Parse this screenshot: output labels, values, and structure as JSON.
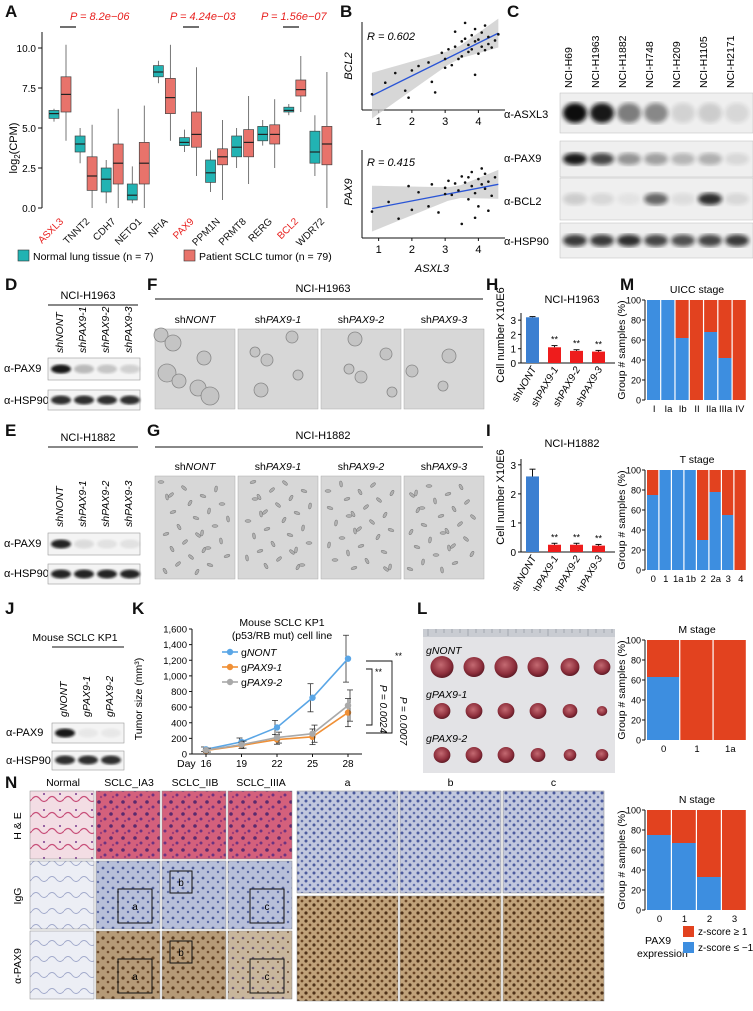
{
  "panels": {
    "A": {
      "label": "A",
      "ylabel": "log",
      "ylabel_sub": "2",
      "ylabel_rest": "(CPM)",
      "yticks": [
        "0.0",
        "2.5",
        "5.0",
        "7.5",
        "10.0"
      ],
      "pvalues": [
        "P = 8.2e−06",
        "P = 4.24e−03",
        "P = 1.56e−07"
      ],
      "genes": [
        "ASXL3",
        "TNNT2",
        "CDH7",
        "NETO1",
        "NFIA",
        "PAX9",
        "PPM1N",
        "PRMT8",
        "RERG",
        "BCL2",
        "WDR72"
      ],
      "highlight": [
        "ASXL3",
        "PAX9",
        "BCL2"
      ],
      "legend": {
        "normal": "Normal lung tissue (n = 7)",
        "tumor": "Patient SCLC tumor (n = 79)"
      },
      "colors": {
        "normal": "#22b3b3",
        "tumor": "#e8736b",
        "highlight": "#e8211f"
      }
    },
    "B": {
      "label": "B",
      "top": {
        "r": "R = 0.602",
        "ylabel": "BCL2"
      },
      "bottom": {
        "r": "R = 0.415",
        "ylabel": "PAX9",
        "xlabel": "ASXL3"
      },
      "xticks": [
        "1",
        "2",
        "3",
        "4"
      ]
    },
    "C": {
      "label": "C",
      "lanes": [
        "NCI-H69",
        "NCI-H1963",
        "NCI-H1882",
        "NCI-H748",
        "NCI-H209",
        "NCI-H1105",
        "NCI-H2171"
      ],
      "rows": [
        "α-ASXL3",
        "α-PAX9",
        "α-BCL2",
        "α-HSP90"
      ]
    },
    "D": {
      "label": "D",
      "cell": "NCI-H1963",
      "lanes": [
        "shNONT",
        "shPAX9-1",
        "shPAX9-2",
        "shPAX9-3"
      ],
      "rows": [
        "α-PAX9",
        "α-HSP90"
      ]
    },
    "E": {
      "label": "E",
      "cell": "NCI-H1882",
      "lanes": [
        "shNONT",
        "shPAX9-1",
        "shPAX9-2",
        "shPAX9-3"
      ],
      "rows": [
        "α-PAX9",
        "α-HSP90"
      ]
    },
    "F": {
      "label": "F",
      "cell": "NCI-H1963",
      "images": [
        "shNONT",
        "shPAX9-1",
        "shPAX9-2",
        "shPAX9-3"
      ]
    },
    "G": {
      "label": "G",
      "cell": "NCI-H1882",
      "images": [
        "shNONT",
        "shPAX9-1",
        "shPAX9-2",
        "shPAX9-3"
      ]
    },
    "H": {
      "label": "H",
      "title": "NCI-H1963",
      "ylabel": "Cell number X10E6",
      "yticks": [
        "0",
        "1",
        "2",
        "3"
      ],
      "categories": [
        "shNONT",
        "shPAX9-1",
        "shPAX9-2",
        "shPAX9-3"
      ],
      "sig": "**"
    },
    "I": {
      "label": "I",
      "title": "NCI-H1882",
      "ylabel": "Cell number X10E6",
      "yticks": [
        "0",
        "1",
        "2",
        "3"
      ],
      "categories": [
        "shNONT",
        "shPAX9-1",
        "shPAX9-2",
        "shPAX9-3"
      ],
      "sig": "**"
    },
    "J": {
      "label": "J",
      "title": "Mouse SCLC KP1",
      "lanes": [
        "gNONT",
        "gPAX9-1",
        "gPAX9-2"
      ],
      "rows": [
        "α-PAX9",
        "α-HSP90"
      ]
    },
    "K": {
      "label": "K",
      "title1": "Mouse SCLC KP1",
      "title2": "(p53/RB mut) cell line",
      "ylabel": "Tumor size (mm³)",
      "xlabel_prefix": "Day",
      "p1": "P = 0.0024",
      "p2": "P = 0.0007",
      "sig": "**"
    },
    "L": {
      "label": "L",
      "rows": [
        "gNONT",
        "gPAX9-1",
        "gPAX9-2"
      ]
    },
    "M": {
      "label": "M",
      "ylabel": "Group # samples (%)",
      "yticks": [
        "0",
        "20",
        "40",
        "60",
        "80",
        "100"
      ],
      "legend": {
        "title1": "PAX9",
        "title2": "expression",
        "high": "z-score ≥ 1",
        "low": "z-score ≤ −1"
      },
      "colors": {
        "high": "#e2421f",
        "low": "#3d8ee0"
      }
    },
    "N": {
      "label": "N",
      "cols_left": [
        "Normal",
        "SCLC_IA3",
        "SCLC_IIB",
        "SCLC_IIIA"
      ],
      "cols_right": [
        "a",
        "b",
        "c"
      ],
      "rows": [
        "H & E",
        "IgG",
        "α-PAX9"
      ],
      "boxes": [
        "a",
        "b",
        "c"
      ]
    }
  },
  "chart_data": [
    {
      "panel": "A",
      "type": "box",
      "categories": [
        "ASXL3",
        "TNNT2",
        "CDH7",
        "NETO1",
        "NFIA",
        "PAX9",
        "PPM1N",
        "PRMT8",
        "RERG",
        "BCL2",
        "WDR72"
      ],
      "ylim": [
        0,
        11
      ],
      "series": [
        {
          "name": "Normal lung tissue (n = 7)",
          "box": [
            [
              5.4,
              5.6,
              5.9,
              6.1,
              6.2
            ],
            [
              2.8,
              3.5,
              4.0,
              4.5,
              5.0
            ],
            [
              0.3,
              1.0,
              1.8,
              2.5,
              3.0
            ],
            [
              0.3,
              0.5,
              0.8,
              1.5,
              2.6
            ],
            [
              7.8,
              8.2,
              8.5,
              8.9,
              9.2
            ],
            [
              3.5,
              3.9,
              4.1,
              4.4,
              4.9
            ],
            [
              1.0,
              1.6,
              2.2,
              3.0,
              3.6
            ],
            [
              2.5,
              3.2,
              3.8,
              4.5,
              5.0
            ],
            [
              3.9,
              4.2,
              4.6,
              5.1,
              5.5
            ],
            [
              5.8,
              6.0,
              6.1,
              6.3,
              6.5
            ],
            [
              2.0,
              2.8,
              3.5,
              4.8,
              5.8
            ]
          ]
        },
        {
          "name": "Patient SCLC tumor (n = 79)",
          "box": [
            [
              4.2,
              6.0,
              7.1,
              8.2,
              10.2
            ],
            [
              0.0,
              1.1,
              2.0,
              3.2,
              5.2
            ],
            [
              0.0,
              1.5,
              2.8,
              4.0,
              6.2
            ],
            [
              0.0,
              1.5,
              2.8,
              4.1,
              6.4
            ],
            [
              4.2,
              5.9,
              6.9,
              8.1,
              10.2
            ],
            [
              2.0,
              3.8,
              4.6,
              6.0,
              8.8
            ],
            [
              0.5,
              2.7,
              3.2,
              3.7,
              5.5
            ],
            [
              1.5,
              3.2,
              4.1,
              4.9,
              7.0
            ],
            [
              2.5,
              4.0,
              4.6,
              5.2,
              6.8
            ],
            [
              6.0,
              7.0,
              7.4,
              8.0,
              9.5
            ],
            [
              0.0,
              2.7,
              4.0,
              5.1,
              8.5
            ]
          ]
        }
      ]
    },
    {
      "panel": "B-top",
      "type": "scatter",
      "r": 0.602,
      "xlim": [
        0.5,
        4.8
      ],
      "ylim": [
        0,
        10
      ],
      "x": [
        0.8,
        1.2,
        1.5,
        1.8,
        2.0,
        2.2,
        2.5,
        2.7,
        2.9,
        3.0,
        3.1,
        3.2,
        3.3,
        3.4,
        3.5,
        3.5,
        3.6,
        3.7,
        3.7,
        3.8,
        3.8,
        3.9,
        3.9,
        4.0,
        4.0,
        4.1,
        4.1,
        4.2,
        4.2,
        4.3,
        4.3,
        4.4,
        4.5,
        2.6,
        1.9,
        3.0,
        3.3,
        4.6,
        3.6,
        3.9
      ],
      "y": [
        1.8,
        3.1,
        4.2,
        2.2,
        4.5,
        5.0,
        5.4,
        2.0,
        6.5,
        5.8,
        6.9,
        5.1,
        7.2,
        5.8,
        7.8,
        6.1,
        8.1,
        6.6,
        7.4,
        8.5,
        6.9,
        7.8,
        9.2,
        6.4,
        8.0,
        7.2,
        8.8,
        6.8,
        9.6,
        7.5,
        8.3,
        7.1,
        7.9,
        3.2,
        1.4,
        4.8,
        8.9,
        8.6,
        9.9,
        4.0
      ]
    },
    {
      "panel": "B-bottom",
      "type": "scatter",
      "r": 0.415,
      "xlim": [
        0.5,
        4.8
      ],
      "ylim": [
        0,
        10
      ],
      "x": [
        0.8,
        1.3,
        1.6,
        2.0,
        2.2,
        2.5,
        2.8,
        3.0,
        3.1,
        3.2,
        3.3,
        3.4,
        3.5,
        3.6,
        3.7,
        3.7,
        3.8,
        3.8,
        3.9,
        4.0,
        4.0,
        4.1,
        4.1,
        4.2,
        4.2,
        4.3,
        4.4,
        4.5,
        2.6,
        3.5,
        3.9,
        4.3,
        1.9,
        3.0
      ],
      "y": [
        3.0,
        4.1,
        2.2,
        3.2,
        5.2,
        3.6,
        2.9,
        5.7,
        6.5,
        4.9,
        6.2,
        5.4,
        7.0,
        6.3,
        4.4,
        6.9,
        5.9,
        7.5,
        5.1,
        6.7,
        3.6,
        6.1,
        7.9,
        5.6,
        7.3,
        6.4,
        4.8,
        6.9,
        6.1,
        1.6,
        2.3,
        3.1,
        5.9,
        5.0
      ]
    },
    {
      "panel": "H",
      "type": "bar",
      "categories": [
        "shNONT",
        "shPAX9-1",
        "shPAX9-2",
        "shPAX9-3"
      ],
      "values": [
        3.2,
        1.1,
        0.85,
        0.8
      ],
      "errors": [
        0.05,
        0.12,
        0.08,
        0.08
      ],
      "ylim": [
        0,
        3.5
      ]
    },
    {
      "panel": "I",
      "type": "bar",
      "categories": [
        "shNONT",
        "shPAX9-1",
        "shPAX9-2",
        "shPAX9-3"
      ],
      "values": [
        2.6,
        0.25,
        0.25,
        0.22
      ],
      "errors": [
        0.25,
        0.05,
        0.05,
        0.04
      ],
      "ylim": [
        0,
        3.2
      ]
    },
    {
      "panel": "K",
      "type": "line",
      "x": [
        16,
        19,
        22,
        25,
        28
      ],
      "ylim": [
        0,
        1600
      ],
      "yticks": [
        "0",
        "200",
        "400",
        "600",
        "800",
        "1,000",
        "1,200",
        "1,400",
        "1,600"
      ],
      "series": [
        {
          "name": "gNONT",
          "values": [
            60,
            155,
            340,
            720,
            1220
          ],
          "errors": [
            30,
            50,
            90,
            180,
            300
          ],
          "color": "#5aa6e6"
        },
        {
          "name": "gPAX9-1",
          "values": [
            45,
            110,
            185,
            220,
            530
          ],
          "errors": [
            25,
            40,
            60,
            100,
            180
          ],
          "color": "#f09036"
        },
        {
          "name": "gPAX9-2",
          "values": [
            50,
            120,
            210,
            260,
            620
          ],
          "errors": [
            25,
            45,
            70,
            110,
            200
          ],
          "color": "#a9a9a9"
        }
      ]
    },
    {
      "panel": "M-UICC",
      "type": "stacked-bar",
      "title": "UICC stage",
      "categories": [
        "I",
        "Ia",
        "Ib",
        "II",
        "IIa",
        "IIIa",
        "IV"
      ],
      "low": [
        100,
        100,
        62,
        0,
        68,
        42,
        0
      ]
    },
    {
      "panel": "M-T",
      "type": "stacked-bar",
      "title": "T stage",
      "categories": [
        "0",
        "1",
        "1a",
        "1b",
        "2",
        "2a",
        "3",
        "4"
      ],
      "low": [
        75,
        100,
        100,
        100,
        30,
        78,
        55,
        0
      ]
    },
    {
      "panel": "M-M",
      "type": "stacked-bar",
      "title": "M stage",
      "categories": [
        "0",
        "1",
        "1a"
      ],
      "low": [
        63,
        0,
        0
      ]
    },
    {
      "panel": "M-N",
      "type": "stacked-bar",
      "title": "N stage",
      "categories": [
        "0",
        "1",
        "2",
        "3"
      ],
      "low": [
        75,
        67,
        33,
        0
      ]
    }
  ]
}
